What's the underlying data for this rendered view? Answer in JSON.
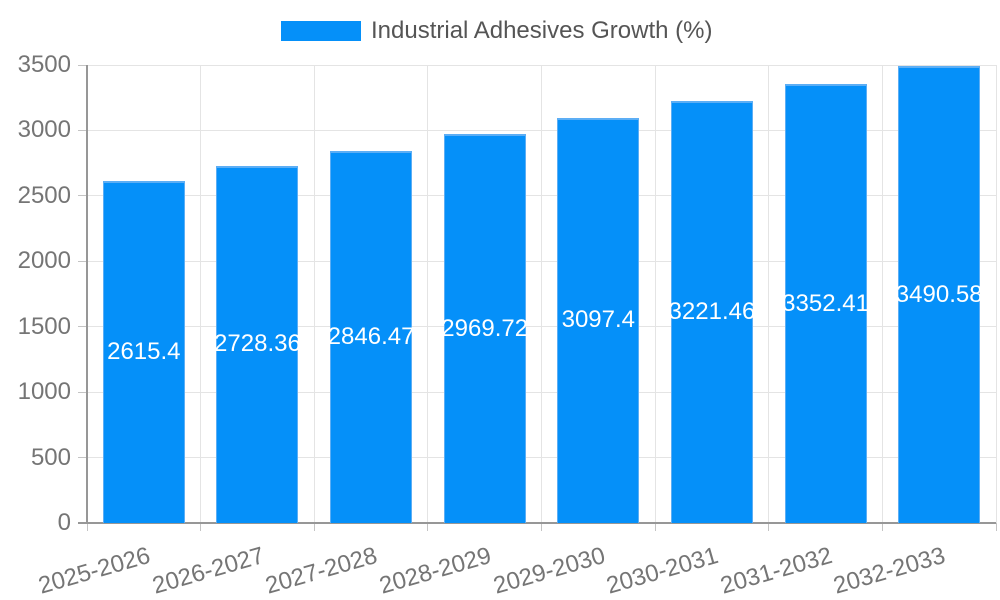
{
  "legend": {
    "label": "Industrial Adhesives Growth (%)"
  },
  "chart_data": {
    "type": "bar",
    "title": "",
    "xlabel": "",
    "ylabel": "",
    "categories": [
      "2025-2026",
      "2026-2027",
      "2027-2028",
      "2028-2029",
      "2029-2030",
      "2030-2031",
      "2031-2032",
      "2032-2033"
    ],
    "values": [
      2615.4,
      2728.36,
      2846.47,
      2969.72,
      3097.4,
      3221.46,
      3352.41,
      3490.58
    ],
    "value_labels": [
      "2615.4",
      "2728.36",
      "2846.47",
      "2969.72",
      "3097.4",
      "3221.46",
      "3352.41",
      "3490.58"
    ],
    "series_name": "Industrial Adhesives Growth (%)",
    "ylim": [
      0,
      3500
    ],
    "yticks": [
      0,
      500,
      1000,
      1500,
      2000,
      2500,
      3000,
      3500
    ],
    "grid": true,
    "legend_position": "top-center",
    "x_label_rotation_deg": -16,
    "colors": {
      "bar_fill": "#0590f9",
      "bar_edge": "#5caef5",
      "value_label": "#ffffff",
      "tick_label": "#757575",
      "legend_text": "#555555",
      "gridline": "#e4e4e4",
      "axis": "#979797",
      "tick_mark": "#c4c4c4",
      "background": "#ffffff"
    }
  }
}
